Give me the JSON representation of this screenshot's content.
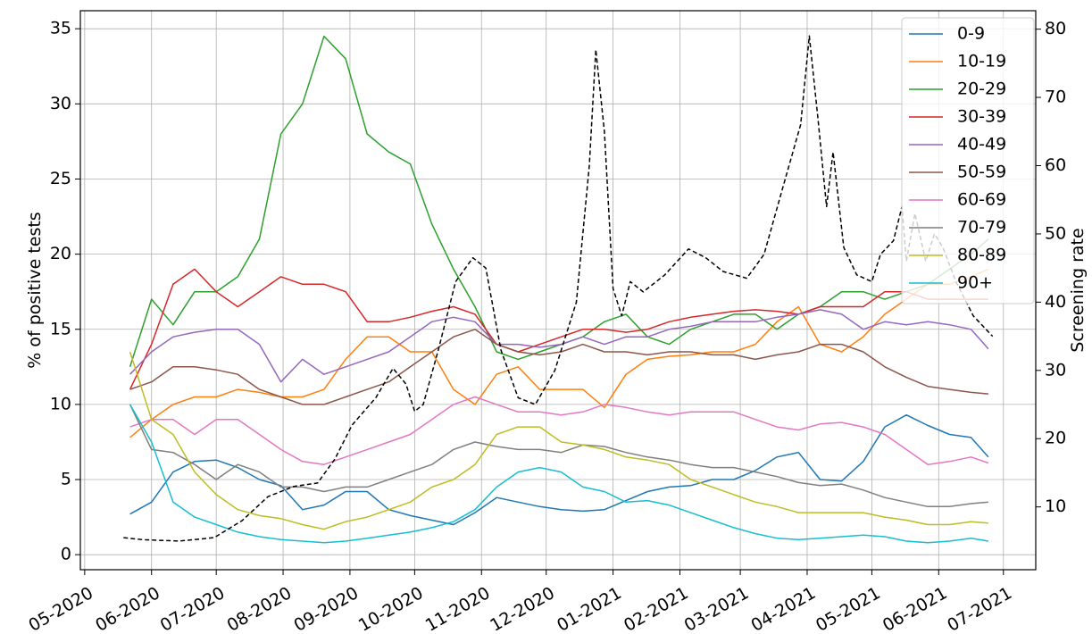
{
  "chart_data": {
    "type": "line",
    "x": [
      21,
      31,
      41,
      51,
      61,
      71,
      81,
      91,
      101,
      111,
      121,
      131,
      141,
      151,
      161,
      171,
      181,
      191,
      201,
      211,
      221,
      231,
      241,
      251,
      261,
      271,
      281,
      291,
      301,
      311,
      321,
      331,
      341,
      351,
      361,
      371,
      381,
      391,
      401,
      411,
      419
    ],
    "xlim": [
      -2,
      441
    ],
    "xticks": [
      {
        "value": 0,
        "label": "05-2020"
      },
      {
        "value": 31,
        "label": "06-2020"
      },
      {
        "value": 61,
        "label": "07-2020"
      },
      {
        "value": 92,
        "label": "08-2020"
      },
      {
        "value": 123,
        "label": "09-2020"
      },
      {
        "value": 153,
        "label": "10-2020"
      },
      {
        "value": 184,
        "label": "11-2020"
      },
      {
        "value": 214,
        "label": "12-2020"
      },
      {
        "value": 245,
        "label": "01-2021"
      },
      {
        "value": 276,
        "label": "02-2021"
      },
      {
        "value": 304,
        "label": "03-2021"
      },
      {
        "value": 335,
        "label": "04-2021"
      },
      {
        "value": 365,
        "label": "05-2021"
      },
      {
        "value": 396,
        "label": "06-2021"
      },
      {
        "value": 426,
        "label": "07-2021"
      }
    ],
    "ylabel": "% of positive tests",
    "ylim": [
      -1,
      36.2
    ],
    "yticks": [
      0,
      5,
      10,
      15,
      20,
      25,
      30,
      35
    ],
    "y2label": "Screening rate",
    "y2lim": [
      0.8,
      82.7
    ],
    "y2ticks": [
      10,
      20,
      30,
      40,
      50,
      60,
      70,
      80
    ],
    "grid": true,
    "legend": "upper right",
    "series": [
      {
        "name": "0-9",
        "color": "#1f77b4",
        "values": [
          2.7,
          3.5,
          5.5,
          6.2,
          6.3,
          5.8,
          5.0,
          4.6,
          3.0,
          3.3,
          4.2,
          4.2,
          3.0,
          2.6,
          2.3,
          2.0,
          2.8,
          3.8,
          3.5,
          3.2,
          3.0,
          2.9,
          3.0,
          3.6,
          4.2,
          4.5,
          4.6,
          5.0,
          5.0,
          5.6,
          6.5,
          6.8,
          5.0,
          4.9,
          6.2,
          8.5,
          9.3,
          8.6,
          8.0,
          7.8,
          6.5
        ]
      },
      {
        "name": "10-19",
        "color": "#ff7f0e",
        "values": [
          7.8,
          9.0,
          10,
          10.5,
          10.5,
          11,
          10.8,
          10.5,
          10.5,
          11,
          13,
          14.5,
          14.5,
          13.5,
          13.5,
          11,
          10,
          12,
          12.5,
          11,
          11,
          11,
          9.8,
          12,
          13,
          13.2,
          13.3,
          13.5,
          13.5,
          14,
          15.5,
          16.5,
          14,
          13.5,
          14.5,
          16,
          17,
          18,
          18,
          18.5,
          19
        ]
      },
      {
        "name": "20-29",
        "color": "#2ca02c",
        "values": [
          12.5,
          17,
          15.3,
          17.5,
          17.5,
          18.5,
          21,
          28,
          30,
          34.5,
          33,
          28,
          26.8,
          26,
          22,
          19,
          16.5,
          13.5,
          13,
          13.5,
          14,
          14.5,
          15.5,
          16,
          14.5,
          14,
          15,
          15.5,
          16,
          16,
          15,
          16,
          16.5,
          17.5,
          17.5,
          17,
          17.5,
          18,
          19,
          20,
          21
        ]
      },
      {
        "name": "30-39",
        "color": "#d62728",
        "values": [
          11,
          14,
          18,
          19,
          17.5,
          16.5,
          17.5,
          18.5,
          18,
          18,
          17.5,
          15.5,
          15.5,
          15.8,
          16.2,
          16.5,
          16,
          14,
          13.5,
          14,
          14.5,
          15,
          15,
          14.8,
          15,
          15.5,
          15.8,
          16,
          16.2,
          16.3,
          16.2,
          16,
          16.5,
          16.5,
          16.5,
          17.5,
          17.5,
          17,
          17,
          17,
          17
        ]
      },
      {
        "name": "40-49",
        "color": "#9467bd",
        "values": [
          12,
          13.5,
          14.5,
          14.8,
          15,
          15,
          14,
          11.5,
          13,
          12,
          12.5,
          13,
          13.5,
          14.5,
          15.5,
          15.8,
          15.5,
          14,
          14,
          13.8,
          14,
          14.5,
          14,
          14.5,
          14.5,
          15,
          15.2,
          15.5,
          15.5,
          15.5,
          15.8,
          16,
          16.3,
          16,
          15,
          15.5,
          15.3,
          15.5,
          15.3,
          15,
          13.7
        ]
      },
      {
        "name": "50-59",
        "color": "#8c564b",
        "values": [
          11,
          11.5,
          12.5,
          12.5,
          12.3,
          12,
          11,
          10.5,
          10,
          10,
          10.5,
          11,
          11.5,
          12.5,
          13.5,
          14.5,
          15,
          14,
          13.5,
          13.3,
          13.5,
          14,
          13.5,
          13.5,
          13.3,
          13.5,
          13.5,
          13.3,
          13.3,
          13,
          13.3,
          13.5,
          14,
          14,
          13.5,
          12.5,
          11.8,
          11.2,
          11,
          10.8,
          10.7
        ]
      },
      {
        "name": "60-69",
        "color": "#e377c2",
        "values": [
          8.5,
          9,
          9,
          8,
          9,
          9,
          8,
          7,
          6.2,
          6,
          6.5,
          7,
          7.5,
          8,
          9,
          10,
          10.5,
          10,
          9.5,
          9.5,
          9.3,
          9.5,
          10,
          9.8,
          9.5,
          9.3,
          9.5,
          9.5,
          9.5,
          9,
          8.5,
          8.3,
          8.7,
          8.8,
          8.5,
          8,
          7,
          6,
          6.2,
          6.5,
          6.1
        ]
      },
      {
        "name": "70-79",
        "color": "#7f7f7f",
        "values": [
          10,
          7,
          6.8,
          6,
          5,
          6,
          5.5,
          4.5,
          4.5,
          4.2,
          4.5,
          4.5,
          5,
          5.5,
          6,
          7,
          7.5,
          7.2,
          7,
          7,
          6.8,
          7.3,
          7.2,
          6.8,
          6.5,
          6.3,
          6,
          5.8,
          5.8,
          5.5,
          5.2,
          4.8,
          4.6,
          4.7,
          4.3,
          3.8,
          3.5,
          3.2,
          3.2,
          3.4,
          3.5
        ]
      },
      {
        "name": "80-89",
        "color": "#bcbd22",
        "values": [
          13.5,
          9,
          8,
          5.5,
          4,
          3,
          2.6,
          2.4,
          2.0,
          1.7,
          2.2,
          2.5,
          3,
          3.5,
          4.5,
          5,
          6,
          8,
          8.5,
          8.5,
          7.5,
          7.3,
          7,
          6.5,
          6.3,
          6,
          5,
          4.5,
          4,
          3.5,
          3.2,
          2.8,
          2.8,
          2.8,
          2.8,
          2.5,
          2.3,
          2,
          2,
          2.2,
          2.1
        ]
      },
      {
        "name": "90+",
        "color": "#17becf",
        "values": [
          10,
          7.5,
          3.5,
          2.5,
          2,
          1.5,
          1.2,
          1.0,
          0.9,
          0.8,
          0.9,
          1.1,
          1.3,
          1.5,
          1.8,
          2.2,
          3,
          4.5,
          5.5,
          5.8,
          5.5,
          4.5,
          4.2,
          3.5,
          3.6,
          3.3,
          2.8,
          2.3,
          1.8,
          1.4,
          1.1,
          1,
          1.1,
          1.2,
          1.3,
          1.2,
          0.9,
          0.8,
          0.9,
          1.1,
          0.9
        ]
      },
      {
        "color": "#000000",
        "dashed": true,
        "axis": "y2",
        "x": [
          18,
          27,
          44,
          60,
          73,
          85,
          97,
          108,
          116,
          124,
          135,
          143,
          149,
          153,
          157,
          164,
          172,
          180,
          186,
          193,
          201,
          209,
          218,
          228,
          234,
          237,
          241,
          245,
          249,
          253,
          259,
          269,
          280,
          288,
          296,
          307,
          315,
          323,
          332,
          336,
          340,
          344,
          347,
          352,
          358,
          365,
          369,
          375,
          379,
          381,
          385,
          390,
          394,
          398,
          404,
          412,
          421
        ],
        "values": [
          5.5,
          5.2,
          5,
          5.5,
          8,
          11.5,
          13,
          13.5,
          17,
          22,
          26,
          30.3,
          28,
          24,
          25,
          33,
          43,
          46.5,
          45,
          33,
          26,
          25,
          30,
          40,
          60,
          77,
          65,
          42,
          38,
          43,
          41.5,
          44,
          47.8,
          46.5,
          44.5,
          43.5,
          47,
          56,
          66,
          79,
          67,
          54,
          62,
          48,
          44,
          43,
          47,
          49,
          54,
          46,
          53,
          46,
          50,
          48,
          43,
          38,
          35
        ]
      }
    ]
  }
}
